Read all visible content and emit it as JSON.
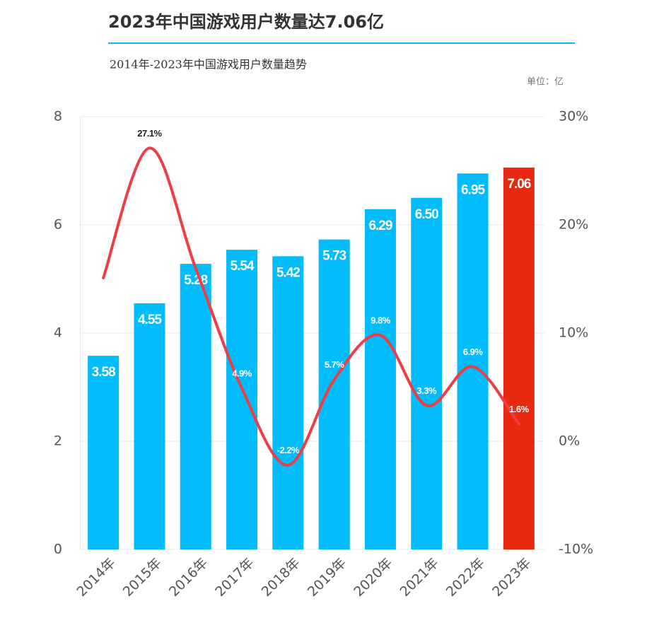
{
  "chart_data": {
    "type": "bar-line",
    "title": "2023年中国游戏用户数量达7.06亿",
    "subtitle": "2014年-2023年中国游戏用户数量趋势",
    "unit": "单位：亿",
    "categories": [
      "2014年",
      "2015年",
      "2016年",
      "2017年",
      "2018年",
      "2019年",
      "2020年",
      "2021年",
      "2022年",
      "2023年"
    ],
    "series": [
      {
        "type": "bar",
        "colors": [
          "#02bcfb",
          "#02bcfb",
          "#02bcfb",
          "#02bcfb",
          "#02bcfb",
          "#02bcfb",
          "#02bcfb",
          "#02bcfb",
          "#02bcfb",
          "#e8280f"
        ],
        "values": [
          3.58,
          4.55,
          5.28,
          5.54,
          5.42,
          5.73,
          6.29,
          6.5,
          6.95,
          7.06
        ],
        "value_labels": [
          "3.58",
          "4.55",
          "5.28",
          "5.54",
          "5.42",
          "5.73",
          "6.29",
          "6.50",
          "6.95",
          "7.06"
        ]
      },
      {
        "type": "line",
        "axis": "y2",
        "color": "#ee3d44",
        "values": [
          15.1,
          27.1,
          16.0,
          4.9,
          -2.2,
          5.7,
          9.8,
          3.3,
          6.9,
          1.6
        ],
        "value_labels": [
          null,
          "27.1%",
          null,
          "4.9%",
          "-2.2%",
          "5.7%",
          "9.8%",
          "3.3%",
          "6.9%",
          "1.6%"
        ]
      }
    ],
    "ylim": [
      0,
      8
    ],
    "yticks": [
      0,
      2,
      4,
      6,
      8
    ],
    "y2lim": [
      -10,
      30
    ],
    "y2ticks": [
      {
        "value": -10,
        "label": "-10%"
      },
      {
        "value": 0,
        "label": "0%"
      },
      {
        "value": 10,
        "label": "10%"
      },
      {
        "value": 20,
        "label": "20%"
      },
      {
        "value": 30,
        "label": "30%"
      }
    ],
    "grid": true
  }
}
